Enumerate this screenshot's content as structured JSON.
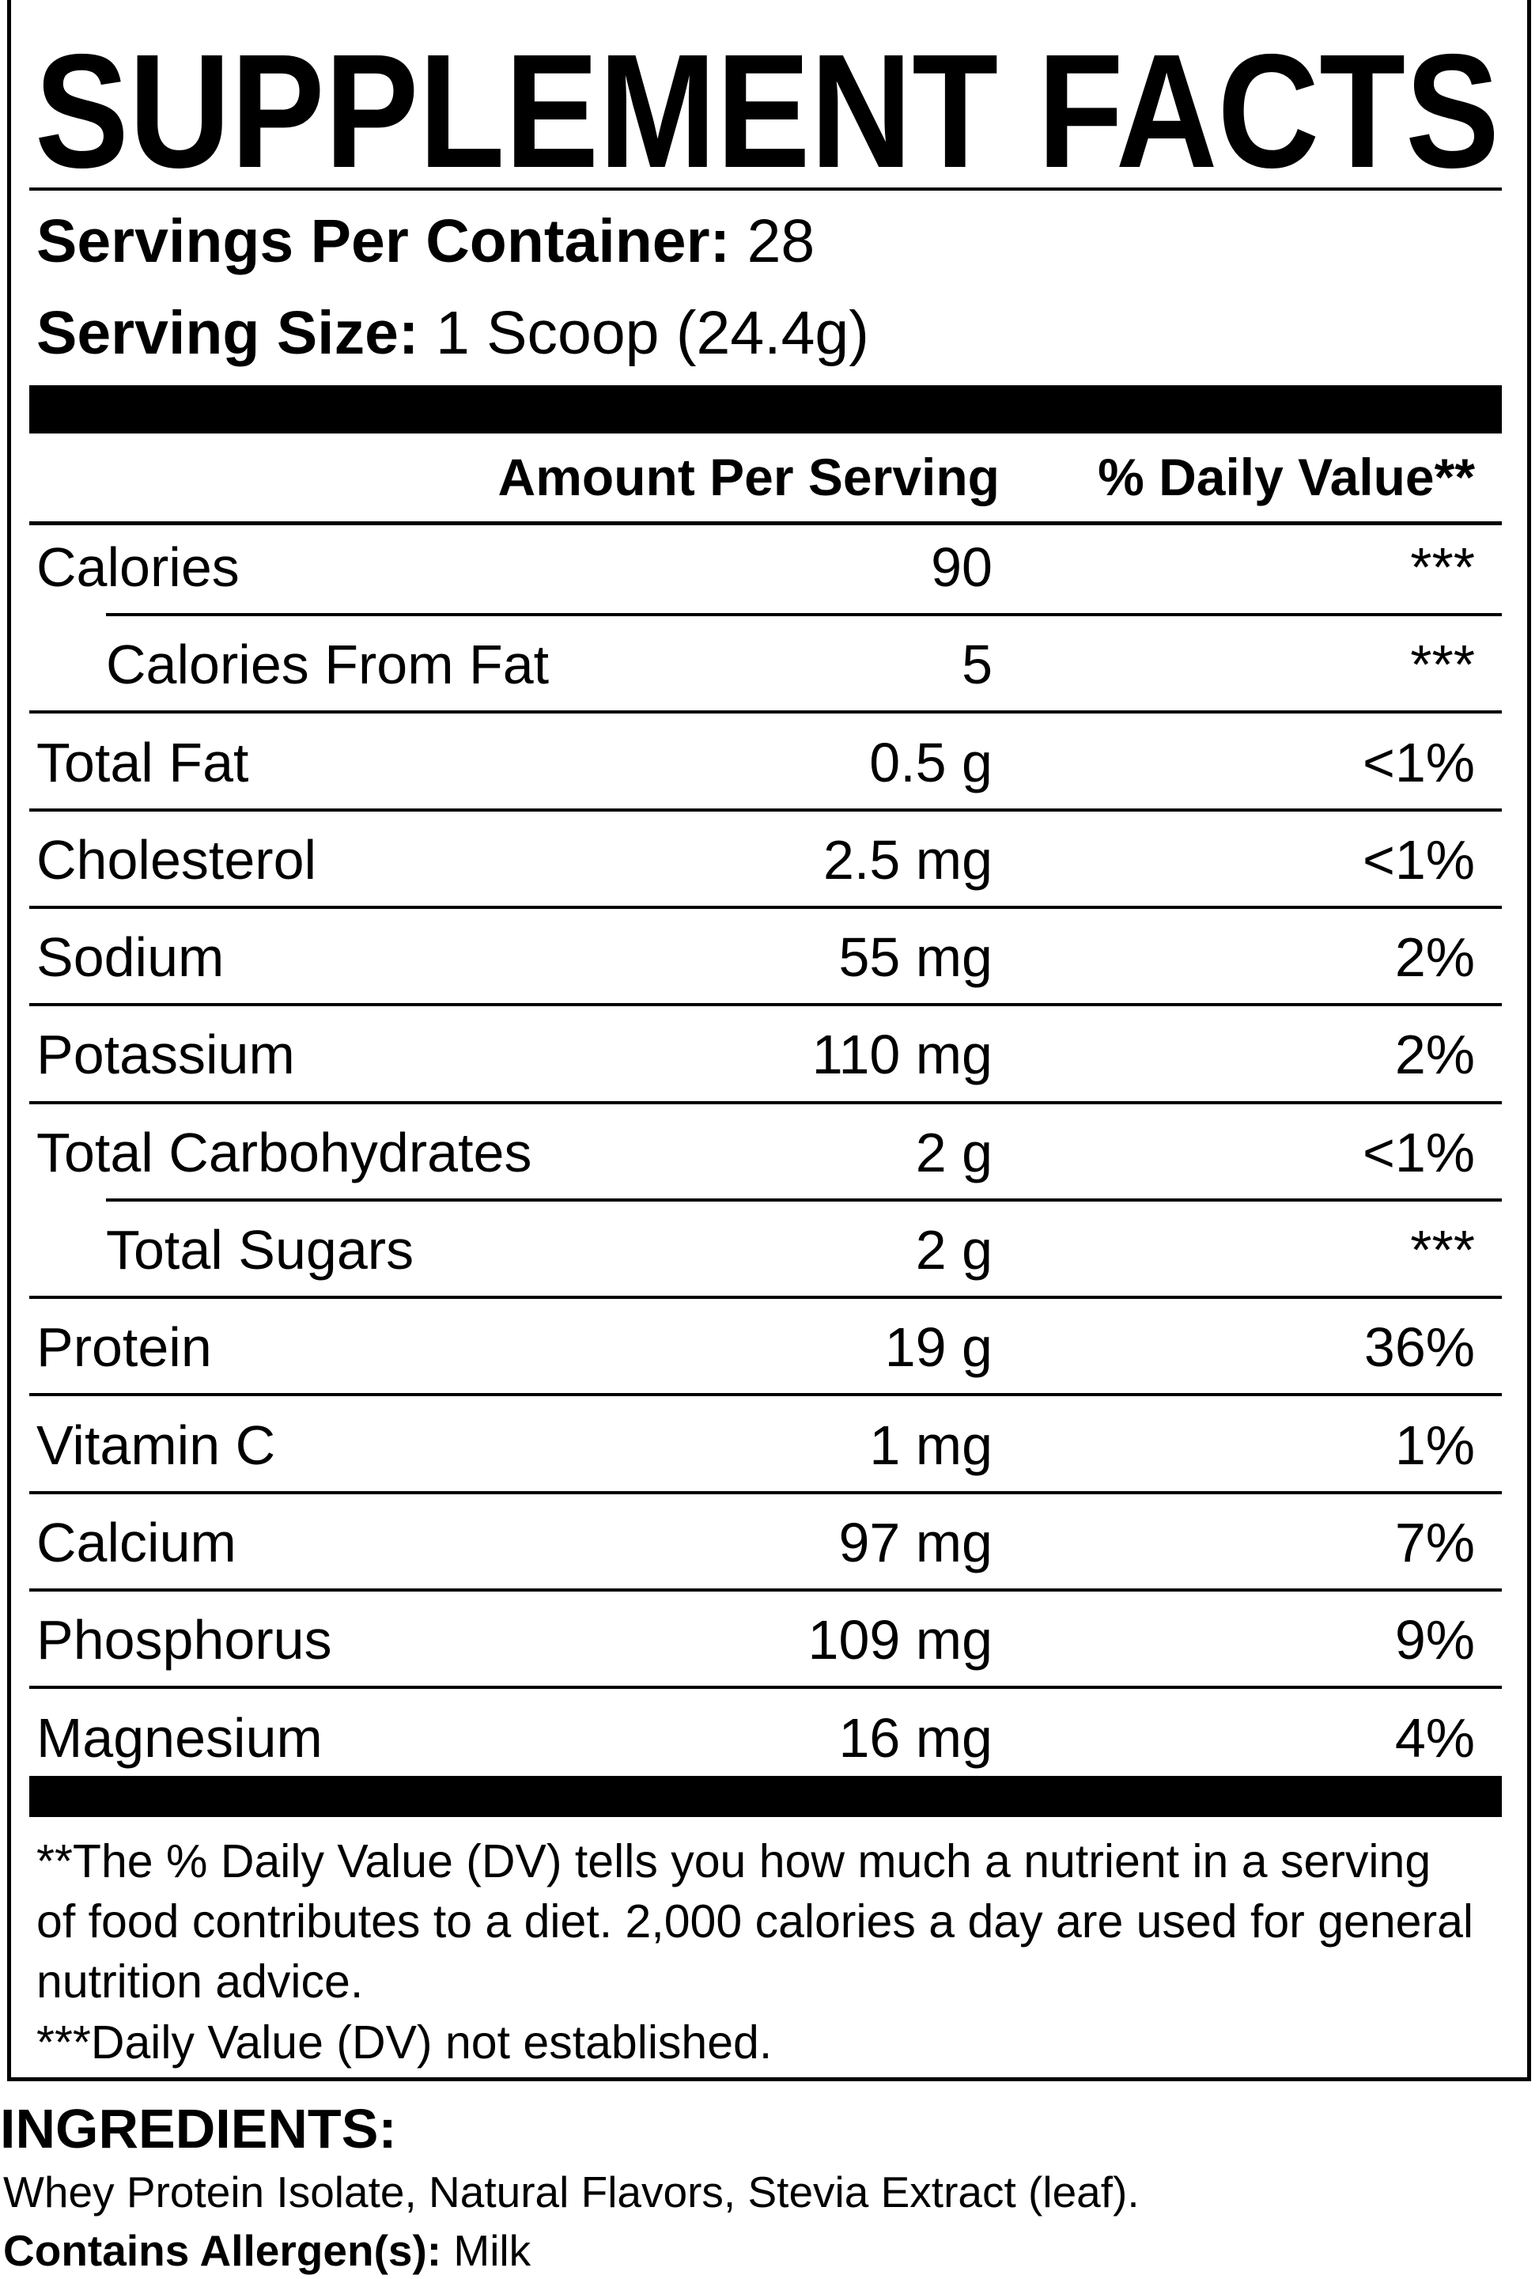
{
  "title": "SUPPLEMENT FACTS",
  "servings": {
    "label": "Servings Per Container:",
    "value": "28"
  },
  "serving_size": {
    "label": "Serving Size:",
    "value": "1 Scoop (24.4g)"
  },
  "table": {
    "header": [
      "Amount Per Serving",
      "% Daily Value**"
    ],
    "rows": [
      {
        "name": "Calories",
        "amount": "90",
        "dv": "***",
        "sub_rows": [
          {
            "name": "Calories From Fat",
            "amount": "5",
            "dv": "***"
          }
        ]
      },
      {
        "name": "Total Fat",
        "amount": "0.5 g",
        "dv": "<1%"
      },
      {
        "name": "Cholesterol",
        "amount": "2.5 mg",
        "dv": "<1%"
      },
      {
        "name": "Sodium",
        "amount": "55 mg",
        "dv": "2%"
      },
      {
        "name": "Potassium",
        "amount": "110 mg",
        "dv": "2%"
      },
      {
        "name": "Total Carbohydrates",
        "amount": "2 g",
        "dv": "<1%",
        "sub_rows": [
          {
            "name": "Total Sugars",
            "amount": "2 g",
            "dv": "***"
          }
        ]
      },
      {
        "name": "Protein",
        "amount": "19 g",
        "dv": "36%"
      },
      {
        "name": "Vitamin C",
        "amount": "1 mg",
        "dv": "1%"
      },
      {
        "name": "Calcium",
        "amount": "97 mg",
        "dv": "7%"
      },
      {
        "name": "Phosphorus",
        "amount": "109 mg",
        "dv": "9%"
      },
      {
        "name": "Magnesium",
        "amount": "16 mg",
        "dv": "4%"
      }
    ]
  },
  "footnotes": [
    "**The % Daily Value (DV) tells you how much a nutrient in a serving of food contributes to a diet. 2,000 calories a day are used for general nutrition advice.",
    "***Daily Value (DV) not established."
  ],
  "ingredients": {
    "heading": "INGREDIENTS:",
    "text": "Whey Protein Isolate, Natural Flavors, Stevia Extract (leaf).",
    "allergen_label": "Contains Allergen(s):",
    "allergen_value": "Milk"
  }
}
